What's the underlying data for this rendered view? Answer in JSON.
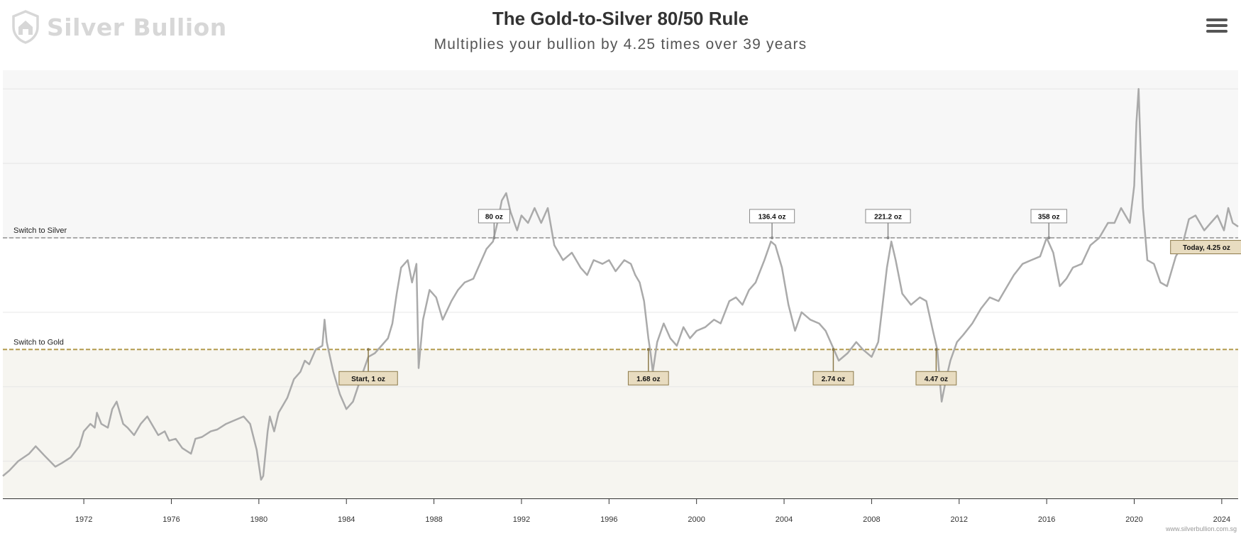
{
  "logo": {
    "text": "Silver Bullion",
    "icon": "house-shield-icon"
  },
  "menu": {
    "icon": "hamburger-menu-icon"
  },
  "credit": "www.silverbullion.com.sg",
  "colors": {
    "line": "#aaaaaa",
    "band_upper": "#f7f7f7",
    "band_lower": "#f6f5f0",
    "gold": "#b39b4e",
    "silver": "#aaaaaa",
    "grid": "#e6e6e6",
    "gold_label_fill": "#e8dcc0",
    "gold_label_stroke": "#8c7a4a",
    "silver_label_fill": "#ffffff",
    "silver_label_stroke": "#8a8a8a"
  },
  "chart_data": {
    "type": "line",
    "title": "The Gold-to-Silver 80/50 Rule",
    "subtitle": "Multiplies your bullion by 4.25 times over 39 years",
    "x_ticks": [
      "1972",
      "1976",
      "1980",
      "1984",
      "1988",
      "1992",
      "1996",
      "2000",
      "2004",
      "2008",
      "2012",
      "2016",
      "2020",
      "2024"
    ],
    "xlim": [
      1968.3,
      2024.75
    ],
    "ylim": [
      10,
      125
    ],
    "y_gridlines": [
      20,
      40,
      60,
      80,
      100,
      120
    ],
    "y_tick_labels_visible": false,
    "grid": true,
    "legend": "none",
    "thresholds": [
      {
        "label": "Switch to Silver",
        "value": 80,
        "style": "dashed",
        "color": "#aaaaaa"
      },
      {
        "label": "Switch to Gold",
        "value": 50,
        "style": "dashed",
        "color": "#b39b4e"
      }
    ],
    "series": [
      {
        "values": [
          [
            1968.3,
            16
          ],
          [
            1968.6,
            17.5
          ],
          [
            1969.0,
            20
          ],
          [
            1969.5,
            22
          ],
          [
            1969.8,
            24
          ],
          [
            1970.2,
            21.5
          ],
          [
            1970.7,
            18.5
          ],
          [
            1971.0,
            19.5
          ],
          [
            1971.4,
            21
          ],
          [
            1971.8,
            24
          ],
          [
            1972.0,
            28
          ],
          [
            1972.3,
            30
          ],
          [
            1972.5,
            29
          ],
          [
            1972.6,
            33
          ],
          [
            1972.8,
            30
          ],
          [
            1973.1,
            29
          ],
          [
            1973.3,
            34
          ],
          [
            1973.5,
            36
          ],
          [
            1973.8,
            30
          ],
          [
            1974.0,
            29
          ],
          [
            1974.3,
            27
          ],
          [
            1974.6,
            30
          ],
          [
            1974.9,
            32
          ],
          [
            1975.2,
            29
          ],
          [
            1975.4,
            27
          ],
          [
            1975.7,
            28
          ],
          [
            1975.9,
            25.5
          ],
          [
            1976.2,
            26
          ],
          [
            1976.5,
            23.5
          ],
          [
            1976.9,
            22
          ],
          [
            1977.1,
            26
          ],
          [
            1977.4,
            26.5
          ],
          [
            1977.8,
            28
          ],
          [
            1978.1,
            28.5
          ],
          [
            1978.5,
            30
          ],
          [
            1978.9,
            31
          ],
          [
            1979.3,
            32
          ],
          [
            1979.6,
            30
          ],
          [
            1979.9,
            23
          ],
          [
            1980.1,
            15
          ],
          [
            1980.2,
            16
          ],
          [
            1980.4,
            28
          ],
          [
            1980.5,
            32
          ],
          [
            1980.7,
            28
          ],
          [
            1980.9,
            33
          ],
          [
            1981.1,
            35
          ],
          [
            1981.3,
            37
          ],
          [
            1981.6,
            42
          ],
          [
            1981.9,
            44
          ],
          [
            1982.1,
            47
          ],
          [
            1982.3,
            46
          ],
          [
            1982.6,
            50
          ],
          [
            1982.9,
            51
          ],
          [
            1983.0,
            58
          ],
          [
            1983.1,
            52
          ],
          [
            1983.4,
            44
          ],
          [
            1983.7,
            38
          ],
          [
            1984.0,
            34
          ],
          [
            1984.3,
            36
          ],
          [
            1984.7,
            43
          ],
          [
            1985.0,
            48
          ],
          [
            1985.3,
            49
          ],
          [
            1985.6,
            51
          ],
          [
            1985.9,
            53
          ],
          [
            1986.1,
            57
          ],
          [
            1986.3,
            65
          ],
          [
            1986.5,
            72
          ],
          [
            1986.8,
            74
          ],
          [
            1987.0,
            68
          ],
          [
            1987.2,
            73
          ],
          [
            1987.3,
            45
          ],
          [
            1987.5,
            58
          ],
          [
            1987.8,
            66
          ],
          [
            1988.1,
            64
          ],
          [
            1988.4,
            58
          ],
          [
            1988.8,
            63
          ],
          [
            1989.1,
            66
          ],
          [
            1989.4,
            68
          ],
          [
            1989.8,
            69
          ],
          [
            1990.1,
            73
          ],
          [
            1990.4,
            77
          ],
          [
            1990.7,
            79
          ],
          [
            1990.9,
            84
          ],
          [
            1991.1,
            90
          ],
          [
            1991.3,
            92
          ],
          [
            1991.5,
            87
          ],
          [
            1991.8,
            82
          ],
          [
            1992.0,
            86
          ],
          [
            1992.3,
            84
          ],
          [
            1992.6,
            88
          ],
          [
            1992.9,
            84
          ],
          [
            1993.2,
            88
          ],
          [
            1993.5,
            78
          ],
          [
            1993.9,
            74
          ],
          [
            1994.3,
            76
          ],
          [
            1994.7,
            72
          ],
          [
            1995.0,
            70
          ],
          [
            1995.3,
            74
          ],
          [
            1995.7,
            73
          ],
          [
            1996.0,
            74
          ],
          [
            1996.3,
            71
          ],
          [
            1996.7,
            74
          ],
          [
            1997.0,
            73
          ],
          [
            1997.2,
            70
          ],
          [
            1997.4,
            68
          ],
          [
            1997.6,
            63
          ],
          [
            1997.8,
            53
          ],
          [
            1997.9,
            49
          ],
          [
            1998.0,
            44
          ],
          [
            1998.2,
            52
          ],
          [
            1998.5,
            57
          ],
          [
            1998.8,
            53
          ],
          [
            1999.1,
            51
          ],
          [
            1999.4,
            56
          ],
          [
            1999.7,
            53
          ],
          [
            2000.0,
            55
          ],
          [
            2000.4,
            56
          ],
          [
            2000.8,
            58
          ],
          [
            2001.1,
            57
          ],
          [
            2001.5,
            63
          ],
          [
            2001.8,
            64
          ],
          [
            2002.1,
            62
          ],
          [
            2002.4,
            66
          ],
          [
            2002.7,
            68
          ],
          [
            2003.1,
            74
          ],
          [
            2003.4,
            79
          ],
          [
            2003.6,
            78
          ],
          [
            2003.9,
            72
          ],
          [
            2004.2,
            62
          ],
          [
            2004.5,
            55
          ],
          [
            2004.8,
            60
          ],
          [
            2005.2,
            58
          ],
          [
            2005.6,
            57
          ],
          [
            2005.9,
            55
          ],
          [
            2006.2,
            51
          ],
          [
            2006.5,
            47
          ],
          [
            2006.9,
            49
          ],
          [
            2007.3,
            52
          ],
          [
            2007.6,
            50
          ],
          [
            2008.0,
            48
          ],
          [
            2008.3,
            52
          ],
          [
            2008.7,
            72
          ],
          [
            2008.9,
            79
          ],
          [
            2009.1,
            74
          ],
          [
            2009.4,
            65
          ],
          [
            2009.8,
            62
          ],
          [
            2010.2,
            64
          ],
          [
            2010.5,
            63
          ],
          [
            2010.8,
            55
          ],
          [
            2011.0,
            50
          ],
          [
            2011.2,
            36
          ],
          [
            2011.4,
            42
          ],
          [
            2011.6,
            47
          ],
          [
            2011.9,
            52
          ],
          [
            2012.2,
            54
          ],
          [
            2012.6,
            57
          ],
          [
            2013.0,
            61
          ],
          [
            2013.4,
            64
          ],
          [
            2013.8,
            63
          ],
          [
            2014.1,
            66
          ],
          [
            2014.5,
            70
          ],
          [
            2014.9,
            73
          ],
          [
            2015.3,
            74
          ],
          [
            2015.7,
            75
          ],
          [
            2016.0,
            80
          ],
          [
            2016.3,
            76
          ],
          [
            2016.6,
            67
          ],
          [
            2016.9,
            69
          ],
          [
            2017.2,
            72
          ],
          [
            2017.6,
            73
          ],
          [
            2018.0,
            78
          ],
          [
            2018.4,
            80
          ],
          [
            2018.8,
            84
          ],
          [
            2019.1,
            84
          ],
          [
            2019.4,
            88
          ],
          [
            2019.8,
            84
          ],
          [
            2020.0,
            94
          ],
          [
            2020.1,
            111
          ],
          [
            2020.2,
            120
          ],
          [
            2020.3,
            102
          ],
          [
            2020.4,
            88
          ],
          [
            2020.6,
            74
          ],
          [
            2020.9,
            73
          ],
          [
            2021.2,
            68
          ],
          [
            2021.5,
            67
          ],
          [
            2021.9,
            75
          ],
          [
            2022.2,
            78
          ],
          [
            2022.5,
            85
          ],
          [
            2022.8,
            86
          ],
          [
            2023.2,
            82
          ],
          [
            2023.5,
            84
          ],
          [
            2023.8,
            86
          ],
          [
            2024.1,
            82
          ],
          [
            2024.3,
            88
          ],
          [
            2024.5,
            84
          ],
          [
            2024.75,
            83
          ]
        ]
      }
    ],
    "annotations": [
      {
        "x": 1985.0,
        "y": 50,
        "text": "Start, 1 oz",
        "kind": "gold",
        "anchor": "below"
      },
      {
        "x": 1990.75,
        "y": 80,
        "text": "80 oz",
        "kind": "silver",
        "anchor": "above"
      },
      {
        "x": 1997.8,
        "y": 50,
        "text": "1.68 oz",
        "kind": "gold",
        "anchor": "below"
      },
      {
        "x": 2003.45,
        "y": 80,
        "text": "136.4 oz",
        "kind": "silver",
        "anchor": "above"
      },
      {
        "x": 2006.25,
        "y": 50,
        "text": "2.74 oz",
        "kind": "gold",
        "anchor": "below"
      },
      {
        "x": 2008.75,
        "y": 80,
        "text": "221.2 oz",
        "kind": "silver",
        "anchor": "above"
      },
      {
        "x": 2010.95,
        "y": 50,
        "text": "4.47 oz",
        "kind": "gold",
        "anchor": "below"
      },
      {
        "x": 2016.1,
        "y": 80,
        "text": "358 oz",
        "kind": "silver",
        "anchor": "above"
      },
      {
        "x": 2024.5,
        "y": 77.5,
        "text": "Today, 4.25 oz",
        "kind": "gold",
        "anchor": "left"
      }
    ]
  }
}
